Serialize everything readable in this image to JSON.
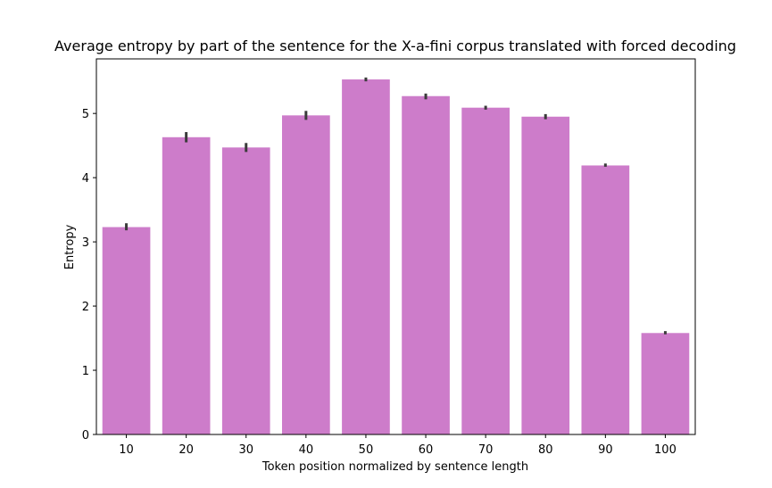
{
  "chart_data": {
    "type": "bar",
    "title": "Average entropy by part of the sentence for the X-a-fini corpus translated with forced decoding",
    "xlabel": "Token position normalized by sentence length",
    "ylabel": "Entropy",
    "categories": [
      "10",
      "20",
      "30",
      "40",
      "50",
      "60",
      "70",
      "80",
      "90",
      "100"
    ],
    "values": [
      3.23,
      4.63,
      4.47,
      4.97,
      5.53,
      5.27,
      5.09,
      4.95,
      4.19,
      1.58
    ],
    "error_low": [
      3.18,
      4.55,
      4.4,
      4.9,
      5.5,
      5.22,
      5.06,
      4.91,
      4.17,
      1.56
    ],
    "error_high": [
      3.29,
      4.71,
      4.54,
      5.04,
      5.56,
      5.31,
      5.12,
      4.99,
      4.22,
      1.61
    ],
    "ylim": [
      0,
      5.85
    ],
    "yticks": [
      0,
      1,
      2,
      3,
      4,
      5
    ],
    "bar_color": "#cd7cca",
    "error_color": "#3b3b3b",
    "grid": false,
    "legend": false
  }
}
